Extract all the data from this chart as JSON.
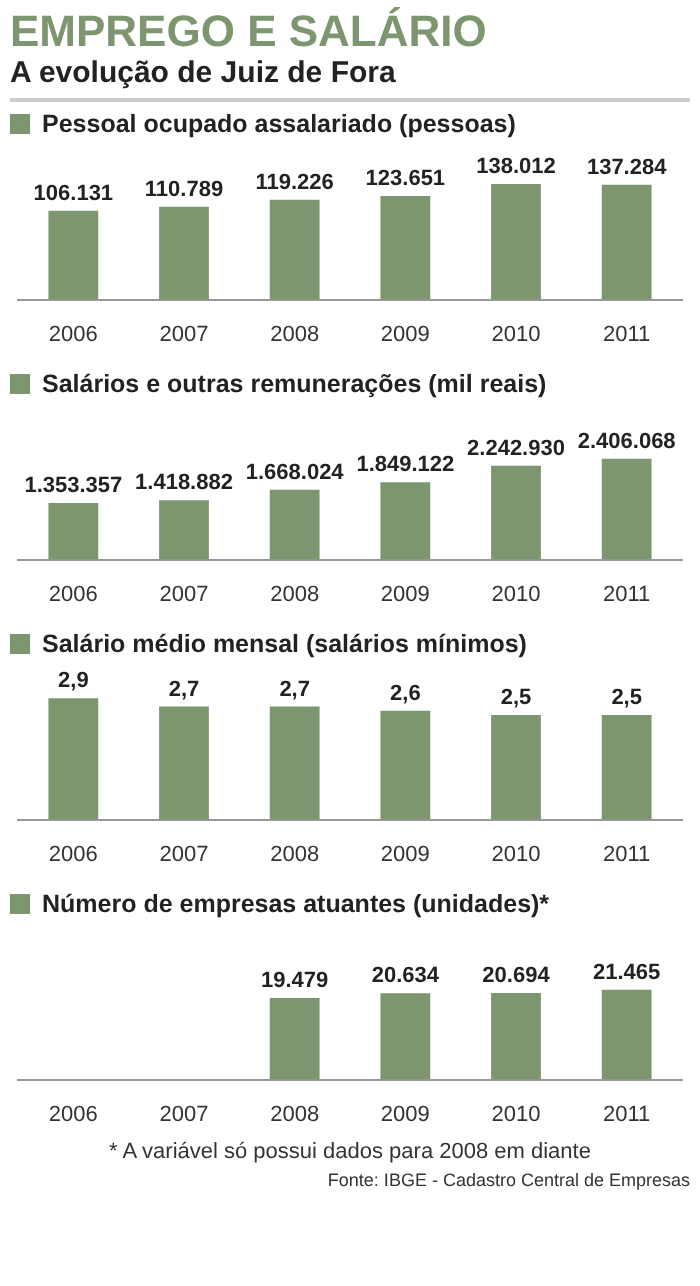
{
  "chart_data": [
    {
      "type": "bar",
      "title": "EMPREGO E SALÁRIO",
      "subtitle": "A evolução de Juiz de Fora",
      "categories": [
        "2006",
        "2007",
        "2008",
        "2009",
        "2010",
        "2011"
      ],
      "legend": "top left",
      "tick_labels": "x",
      "series": [
        {
          "name": "Pessoal ocupado assalariado (pessoas)",
          "color": "#7d9670",
          "values": [
            106131,
            110789,
            119226,
            123651,
            138012,
            137284
          ],
          "value_labels": [
            "106.131",
            "110.789",
            "119.226",
            "123.651",
            "138.012",
            "137.284"
          ]
        }
      ]
    },
    {
      "type": "bar",
      "categories": [
        "2006",
        "2007",
        "2008",
        "2009",
        "2010",
        "2011"
      ],
      "legend": "top left",
      "tick_labels": "x",
      "series": [
        {
          "name": "Salários e outras remunerações (mil reais)",
          "color": "#7d9670",
          "values": [
            1353357,
            1418882,
            1668024,
            1849122,
            2242930,
            2406068
          ],
          "value_labels": [
            "1.353.357",
            "1.418.882",
            "1.668.024",
            "1.849.122",
            "2.242.930",
            "2.406.068"
          ]
        }
      ]
    },
    {
      "type": "bar",
      "categories": [
        "2006",
        "2007",
        "2008",
        "2009",
        "2010",
        "2011"
      ],
      "legend": "top left",
      "tick_labels": "x",
      "series": [
        {
          "name": "Salário médio mensal (salários mínimos)",
          "color": "#7d9670",
          "values": [
            2.9,
            2.7,
            2.7,
            2.6,
            2.5,
            2.5
          ],
          "value_labels": [
            "2,9",
            "2,7",
            "2,7",
            "2,6",
            "2,5",
            "2,5"
          ]
        }
      ]
    },
    {
      "type": "bar",
      "categories": [
        "2006",
        "2007",
        "2008",
        "2009",
        "2010",
        "2011"
      ],
      "legend": "top left",
      "tick_labels": "x",
      "annotations": [
        "* A variável só possui dados para 2008 em diante",
        "Fonte: IBGE - Cadastro Central de Empresas"
      ],
      "series": [
        {
          "name": "Número de empresas atuantes (unidades)*",
          "color": "#7d9670",
          "values": [
            null,
            null,
            19479,
            20634,
            20694,
            21465
          ],
          "value_labels": [
            null,
            null,
            "19.479",
            "20.634",
            "20.694",
            "21.465"
          ]
        }
      ]
    }
  ]
}
